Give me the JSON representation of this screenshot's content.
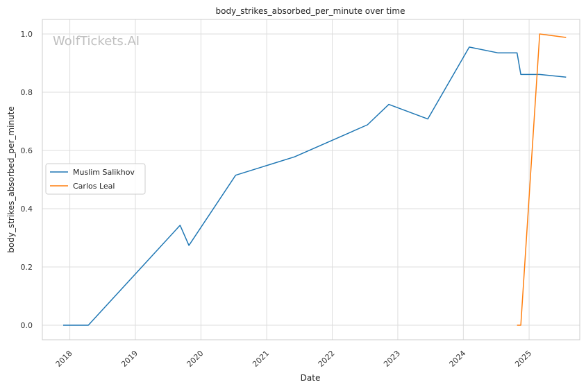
{
  "chart_data": {
    "type": "line",
    "title": "body_strikes_absorbed_per_minute over time",
    "xlabel": "Date",
    "ylabel": "body_strikes_absorbed_per_minute",
    "watermark": "WolfTickets.AI",
    "xlim": [
      "2017-08-01",
      "2025-10-10"
    ],
    "ylim": [
      -0.05,
      1.05
    ],
    "x_ticks": [
      {
        "date": "2018-01-01",
        "label": "2018"
      },
      {
        "date": "2019-01-01",
        "label": "2019"
      },
      {
        "date": "2020-01-01",
        "label": "2020"
      },
      {
        "date": "2021-01-01",
        "label": "2021"
      },
      {
        "date": "2022-01-01",
        "label": "2022"
      },
      {
        "date": "2023-01-01",
        "label": "2023"
      },
      {
        "date": "2024-01-01",
        "label": "2024"
      },
      {
        "date": "2025-01-01",
        "label": "2025"
      }
    ],
    "y_ticks": [
      {
        "value": 0.0,
        "label": "0.0"
      },
      {
        "value": 0.2,
        "label": "0.2"
      },
      {
        "value": 0.4,
        "label": "0.4"
      },
      {
        "value": 0.6,
        "label": "0.6"
      },
      {
        "value": 0.8,
        "label": "0.8"
      },
      {
        "value": 1.0,
        "label": "1.0"
      }
    ],
    "grid": true,
    "legend_position": "center-left",
    "series": [
      {
        "name": "Muslim Salikhov",
        "color": "#1f77b4",
        "points": [
          {
            "x": "2017-11-25",
            "y": 0.0
          },
          {
            "x": "2018-04-14",
            "y": 0.0
          },
          {
            "x": "2019-09-07",
            "y": 0.343
          },
          {
            "x": "2019-10-26",
            "y": 0.274
          },
          {
            "x": "2020-07-12",
            "y": 0.515
          },
          {
            "x": "2021-06-05",
            "y": 0.578
          },
          {
            "x": "2022-07-16",
            "y": 0.688
          },
          {
            "x": "2022-11-12",
            "y": 0.758
          },
          {
            "x": "2023-06-17",
            "y": 0.708
          },
          {
            "x": "2024-02-03",
            "y": 0.955
          },
          {
            "x": "2024-07-13",
            "y": 0.935
          },
          {
            "x": "2024-10-26",
            "y": 0.935
          },
          {
            "x": "2024-11-16",
            "y": 0.861
          },
          {
            "x": "2025-03-01",
            "y": 0.861
          },
          {
            "x": "2025-07-26",
            "y": 0.852
          }
        ]
      },
      {
        "name": "Carlos Leal",
        "color": "#ff7f0e",
        "points": [
          {
            "x": "2024-10-26",
            "y": 0.0
          },
          {
            "x": "2024-11-16",
            "y": 0.0
          },
          {
            "x": "2025-03-01",
            "y": 1.0
          },
          {
            "x": "2025-07-26",
            "y": 0.988
          }
        ]
      }
    ]
  }
}
